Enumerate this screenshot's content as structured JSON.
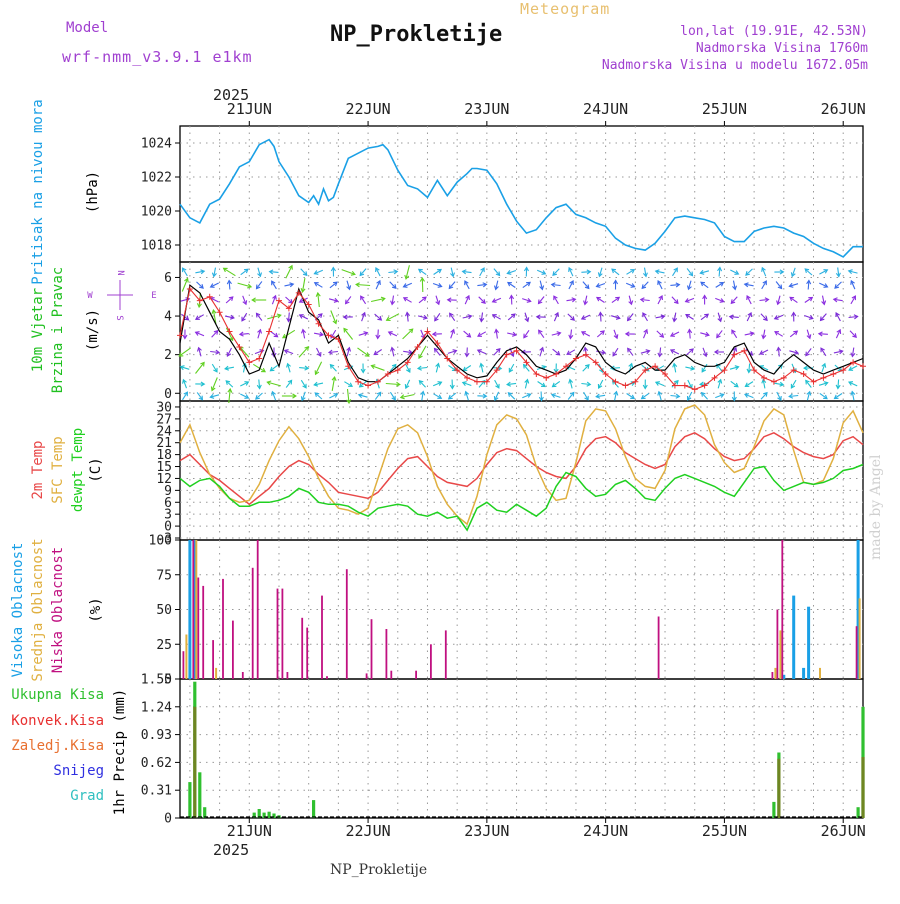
{
  "header": {
    "model_label": "Model",
    "model_name": "wrf-nmm_v3.9.1 e1km",
    "title": "NP_Prokletije",
    "subtitle": "Meteogram",
    "lonlat": "lon,lat (19.91E, 42.53N)",
    "altitude": "Nadmorska Visina 1760m",
    "model_altitude": "Nadmorska Visina u modelu 1672.05m",
    "footer": "NP_Prokletije",
    "year": "2025",
    "made_by": "made by Angel"
  },
  "colors": {
    "pressure": "#1aa0e6",
    "wind_speed": "#000000",
    "wind_gust": "#e83030",
    "t2m": "#e84848",
    "sfc": "#e0b040",
    "dewpt": "#20d020",
    "cloud_high": "#1aa0e6",
    "cloud_mid": "#e0b040",
    "cloud_low": "#c01080",
    "precip_total": "#30c030",
    "precip_conv": "#e83030",
    "precip_grid": "#e87030",
    "snow": "#3030e0",
    "hail": "#30c0c0"
  },
  "x_axis": {
    "day_labels": [
      "21JUN",
      "22JUN",
      "23JUN",
      "24JUN",
      "25JUN",
      "26JUN"
    ],
    "range_hours": [
      -14,
      124
    ]
  },
  "chart_data": [
    {
      "type": "line",
      "panel": "pressure",
      "ylabel_name": "Pritisak na nivou mora",
      "ylabel_unit": "(hPa)",
      "ylim": [
        1017,
        1025
      ],
      "yticks": [
        "1024",
        "1022",
        "1020",
        "1018"
      ],
      "ytick_values": [
        1024,
        1022,
        1020,
        1018
      ],
      "grid": true,
      "x_hours": [
        -14,
        -12,
        -10,
        -8,
        -6,
        -4,
        -2,
        0,
        2,
        4,
        5,
        6,
        8,
        10,
        12,
        13,
        14,
        15,
        16,
        17,
        18,
        20,
        24,
        26,
        27,
        28,
        30,
        32,
        34,
        36,
        38,
        40,
        42,
        44,
        45,
        46,
        48,
        50,
        52,
        54,
        56,
        58,
        60,
        62,
        64,
        66,
        68,
        70,
        72,
        74,
        76,
        78,
        80,
        82,
        84,
        86,
        88,
        90,
        92,
        94,
        96,
        98,
        100,
        102,
        104,
        106,
        108,
        110,
        112,
        114,
        116,
        118,
        120,
        122,
        124
      ],
      "series": [
        {
          "values": [
            1020.4,
            1019.6,
            1019.3,
            1020.4,
            1020.7,
            1021.6,
            1022.6,
            1022.9,
            1023.9,
            1024.2,
            1023.8,
            1022.9,
            1022.0,
            1020.9,
            1020.5,
            1020.9,
            1020.4,
            1021.3,
            1020.6,
            1020.8,
            1021.6,
            1023.1,
            1023.7,
            1023.8,
            1023.9,
            1023.6,
            1022.4,
            1021.5,
            1021.3,
            1020.8,
            1021.8,
            1020.9,
            1021.7,
            1022.2,
            1022.5,
            1022.5,
            1022.4,
            1021.6,
            1020.4,
            1019.4,
            1018.7,
            1018.9,
            1019.6,
            1020.2,
            1020.4,
            1019.8,
            1019.6,
            1019.3,
            1019.1,
            1018.4,
            1018.0,
            1017.8,
            1017.7,
            1018.1,
            1018.8,
            1019.6,
            1019.7,
            1019.6,
            1019.5,
            1019.3,
            1018.5,
            1018.2,
            1018.2,
            1018.8,
            1019.0,
            1019.1,
            1019.0,
            1018.7,
            1018.5,
            1018.1,
            1017.8,
            1017.6,
            1017.3,
            1017.9,
            1017.9
          ]
        }
      ]
    },
    {
      "type": "line",
      "panel": "wind",
      "ylabel_name": "10m Vjetar",
      "ylabel_name2": "Brzina i Pravac",
      "ylabel_unit": "(m/s)",
      "compass_n": "N",
      "compass_e": "E",
      "compass_s": "S",
      "compass_w": "W",
      "ylim": [
        -0.4,
        6.8
      ],
      "yticks": [
        "6",
        "4",
        "2",
        "0"
      ],
      "ytick_values": [
        6,
        4,
        2,
        0
      ],
      "grid": true,
      "x_hours": [
        -14,
        -12,
        -10,
        -8,
        -6,
        -4,
        -2,
        0,
        2,
        4,
        6,
        8,
        10,
        12,
        14,
        16,
        18,
        20,
        22,
        24,
        26,
        28,
        30,
        32,
        34,
        36,
        38,
        40,
        42,
        44,
        46,
        48,
        50,
        52,
        54,
        56,
        58,
        60,
        62,
        64,
        66,
        68,
        70,
        72,
        74,
        76,
        78,
        80,
        82,
        84,
        86,
        88,
        90,
        92,
        94,
        96,
        98,
        100,
        102,
        104,
        106,
        108,
        110,
        112,
        114,
        116,
        118,
        120,
        122,
        124
      ],
      "series": [
        {
          "name": "speed",
          "values": [
            2.6,
            5.6,
            5.2,
            4.2,
            3.2,
            2.8,
            2.0,
            1.0,
            1.2,
            2.6,
            1.4,
            3.4,
            5.4,
            4.2,
            3.8,
            2.6,
            3.0,
            1.6,
            0.8,
            0.6,
            0.6,
            1.0,
            1.4,
            1.8,
            2.4,
            3.0,
            2.4,
            1.8,
            1.4,
            1.0,
            0.8,
            0.9,
            1.6,
            2.2,
            2.4,
            2.0,
            1.4,
            1.2,
            1.0,
            1.2,
            1.8,
            2.6,
            2.4,
            1.6,
            1.2,
            1.0,
            1.4,
            1.6,
            1.2,
            1.2,
            1.8,
            2.0,
            1.6,
            1.4,
            1.4,
            1.6,
            2.4,
            2.6,
            1.6,
            1.2,
            1.0,
            1.6,
            2.0,
            1.6,
            1.2,
            1.0,
            1.2,
            1.4,
            1.6,
            1.8
          ]
        },
        {
          "name": "gust",
          "values": [
            3.0,
            5.4,
            4.8,
            5.0,
            4.2,
            3.2,
            2.4,
            1.6,
            1.8,
            3.2,
            4.8,
            4.4,
            5.2,
            4.6,
            3.6,
            3.0,
            2.8,
            1.4,
            0.6,
            0.4,
            0.6,
            1.0,
            1.2,
            1.6,
            2.4,
            3.2,
            2.6,
            1.8,
            1.2,
            0.8,
            0.6,
            0.6,
            1.2,
            2.0,
            2.2,
            1.6,
            1.0,
            0.8,
            1.0,
            1.4,
            1.8,
            2.0,
            1.6,
            1.0,
            0.6,
            0.4,
            0.6,
            1.2,
            1.4,
            1.0,
            0.4,
            0.4,
            0.2,
            0.4,
            0.8,
            1.2,
            2.0,
            2.2,
            1.2,
            0.8,
            0.6,
            0.8,
            1.2,
            1.0,
            0.6,
            0.8,
            1.0,
            1.2,
            1.6,
            1.4
          ]
        }
      ]
    },
    {
      "type": "line",
      "panel": "temperature",
      "ylabel_name": "2m Temp",
      "ylabel_name2": "SFC Temp",
      "ylabel_name3": "dewpt Temp",
      "ylabel_unit": "(C)",
      "ylim": [
        -3.5,
        31.5
      ],
      "yticks": [
        "30",
        "27",
        "24",
        "21",
        "18",
        "15",
        "12",
        "9",
        "6",
        "3",
        "0",
        "-3"
      ],
      "ytick_values": [
        30,
        27,
        24,
        21,
        18,
        15,
        12,
        9,
        6,
        3,
        0,
        -3
      ],
      "grid": true,
      "x_hours": [
        -14,
        -12,
        -10,
        -8,
        -6,
        -4,
        -2,
        0,
        2,
        4,
        6,
        8,
        10,
        12,
        14,
        16,
        18,
        20,
        22,
        24,
        26,
        28,
        30,
        32,
        34,
        36,
        38,
        40,
        42,
        44,
        46,
        48,
        50,
        52,
        54,
        56,
        58,
        60,
        62,
        64,
        66,
        68,
        70,
        72,
        74,
        76,
        78,
        80,
        82,
        84,
        86,
        88,
        90,
        92,
        94,
        96,
        98,
        100,
        102,
        104,
        106,
        108,
        110,
        112,
        114,
        116,
        118,
        120,
        122,
        124
      ],
      "series": [
        {
          "name": "2m Temp",
          "values": [
            16.5,
            18.0,
            15.5,
            13.0,
            11.5,
            9.5,
            7.5,
            5.5,
            7.5,
            9.5,
            12.5,
            15.0,
            16.5,
            15.5,
            13.0,
            11.0,
            8.5,
            8.0,
            7.5,
            7.0,
            8.5,
            11.5,
            14.5,
            17.0,
            17.5,
            15.0,
            12.5,
            11.0,
            10.5,
            10.0,
            12.0,
            15.5,
            18.5,
            19.5,
            19.0,
            17.0,
            15.0,
            13.5,
            12.5,
            12.0,
            15.0,
            19.5,
            22.0,
            22.5,
            21.0,
            18.5,
            17.0,
            15.5,
            14.5,
            15.5,
            20.0,
            22.5,
            23.5,
            22.0,
            19.5,
            17.5,
            16.5,
            17.0,
            19.5,
            22.5,
            23.5,
            22.0,
            20.0,
            18.5,
            17.5,
            17.0,
            18.0,
            21.5,
            22.5,
            20.5
          ]
        },
        {
          "name": "SFC Temp",
          "values": [
            21.0,
            25.5,
            18.5,
            13.0,
            9.5,
            7.0,
            6.0,
            6.5,
            10.5,
            16.5,
            21.5,
            25.0,
            22.0,
            17.5,
            12.0,
            7.5,
            4.5,
            4.0,
            3.0,
            4.5,
            12.0,
            19.5,
            24.5,
            25.5,
            23.5,
            17.5,
            10.0,
            5.5,
            2.5,
            0.5,
            7.5,
            18.0,
            25.5,
            28.0,
            27.0,
            23.0,
            15.0,
            9.5,
            6.5,
            7.0,
            16.0,
            26.5,
            29.5,
            29.0,
            24.5,
            17.5,
            12.0,
            10.0,
            9.5,
            14.0,
            24.5,
            29.5,
            30.5,
            28.0,
            20.5,
            16.0,
            13.5,
            14.5,
            20.0,
            26.5,
            29.5,
            28.0,
            19.0,
            11.0,
            10.5,
            11.5,
            17.0,
            26.0,
            29.0,
            23.5
          ]
        },
        {
          "name": "dewpt Temp",
          "values": [
            12.0,
            10.0,
            11.5,
            12.0,
            10.0,
            7.0,
            5.0,
            5.0,
            6.0,
            6.0,
            6.5,
            7.5,
            9.5,
            8.5,
            6.0,
            5.5,
            5.5,
            5.0,
            3.5,
            2.5,
            4.5,
            5.0,
            5.5,
            5.0,
            3.0,
            2.5,
            3.5,
            2.0,
            2.5,
            -1.0,
            4.5,
            6.0,
            4.0,
            3.5,
            5.5,
            4.0,
            2.5,
            4.5,
            10.0,
            13.5,
            12.5,
            9.5,
            7.5,
            8.0,
            10.5,
            11.5,
            9.5,
            7.0,
            6.5,
            9.5,
            12.0,
            13.0,
            12.0,
            11.0,
            10.0,
            8.5,
            7.5,
            11.0,
            14.5,
            15.0,
            11.5,
            9.0,
            10.0,
            11.0,
            10.5,
            11.0,
            12.0,
            14.0,
            14.5,
            15.5
          ]
        }
      ]
    },
    {
      "type": "bar",
      "panel": "cloud",
      "ylabel_name": "Visoka Oblacnost",
      "ylabel_name2": "Srednja Oblacnost",
      "ylabel_name3": "Niska Oblacnost",
      "ylabel_unit": "(%)",
      "ylim": [
        0,
        100
      ],
      "yticks": [
        "100",
        "75",
        "50",
        "25",
        "0"
      ],
      "ytick_values": [
        100,
        75,
        50,
        25,
        0
      ],
      "grid": true,
      "series": [
        {
          "name": "Visoka Oblacnost",
          "x_hours": [
            -12,
            -11,
            108,
            110,
            112,
            113,
            123
          ],
          "values": [
            100,
            100,
            3,
            60,
            8,
            52,
            100
          ]
        },
        {
          "name": "Srednja Oblacnost",
          "x_hours": [
            -13,
            -11,
            -7,
            106,
            107,
            115,
            123
          ],
          "values": [
            32,
            100,
            8,
            8,
            35,
            8,
            58
          ]
        },
        {
          "name": "Niska Oblacnost",
          "x_hours": [
            -13,
            -11,
            -10,
            -9,
            -7,
            -5,
            -3,
            -1,
            1,
            2,
            6,
            7,
            8,
            11,
            12,
            15,
            16,
            20,
            24,
            25,
            28,
            29,
            34,
            37,
            40,
            83,
            106,
            107,
            108,
            123
          ],
          "values": [
            20,
            100,
            73,
            67,
            28,
            72,
            42,
            5,
            80,
            100,
            65,
            65,
            5,
            44,
            37,
            60,
            2,
            79,
            4,
            43,
            36,
            6,
            6,
            25,
            35,
            45,
            5,
            50,
            100,
            38
          ]
        }
      ]
    },
    {
      "type": "bar",
      "panel": "precip",
      "ylabel_name": "1hr Precip",
      "ylabel_unit": "(mm)",
      "legend": [
        "Ukupna Kisa",
        "Konvek.Kisa",
        "Zaledj.Kisa",
        "Snijeg",
        "Grad"
      ],
      "ylim": [
        0,
        1.55
      ],
      "yticks": [
        "1.55",
        "1.24",
        "0.93",
        "0.62",
        "0.31",
        "0"
      ],
      "ytick_values": [
        1.55,
        1.24,
        0.93,
        0.62,
        0.31,
        0
      ],
      "grid": true,
      "series": [
        {
          "name": "Ukupna Kisa",
          "x_hours": [
            -12,
            -11,
            -10,
            -9,
            1,
            2,
            3,
            4,
            5,
            6,
            13,
            106,
            107,
            123,
            124
          ],
          "values": [
            0.4,
            1.52,
            0.51,
            0.12,
            0.06,
            0.1,
            0.06,
            0.07,
            0.05,
            0.03,
            0.2,
            0.18,
            0.73,
            0.12,
            1.24
          ]
        },
        {
          "name": "Konvek.Kisa",
          "x_hours": [
            -11,
            107,
            124
          ],
          "values": [
            1.24,
            0.66,
            0.68
          ]
        }
      ]
    }
  ]
}
